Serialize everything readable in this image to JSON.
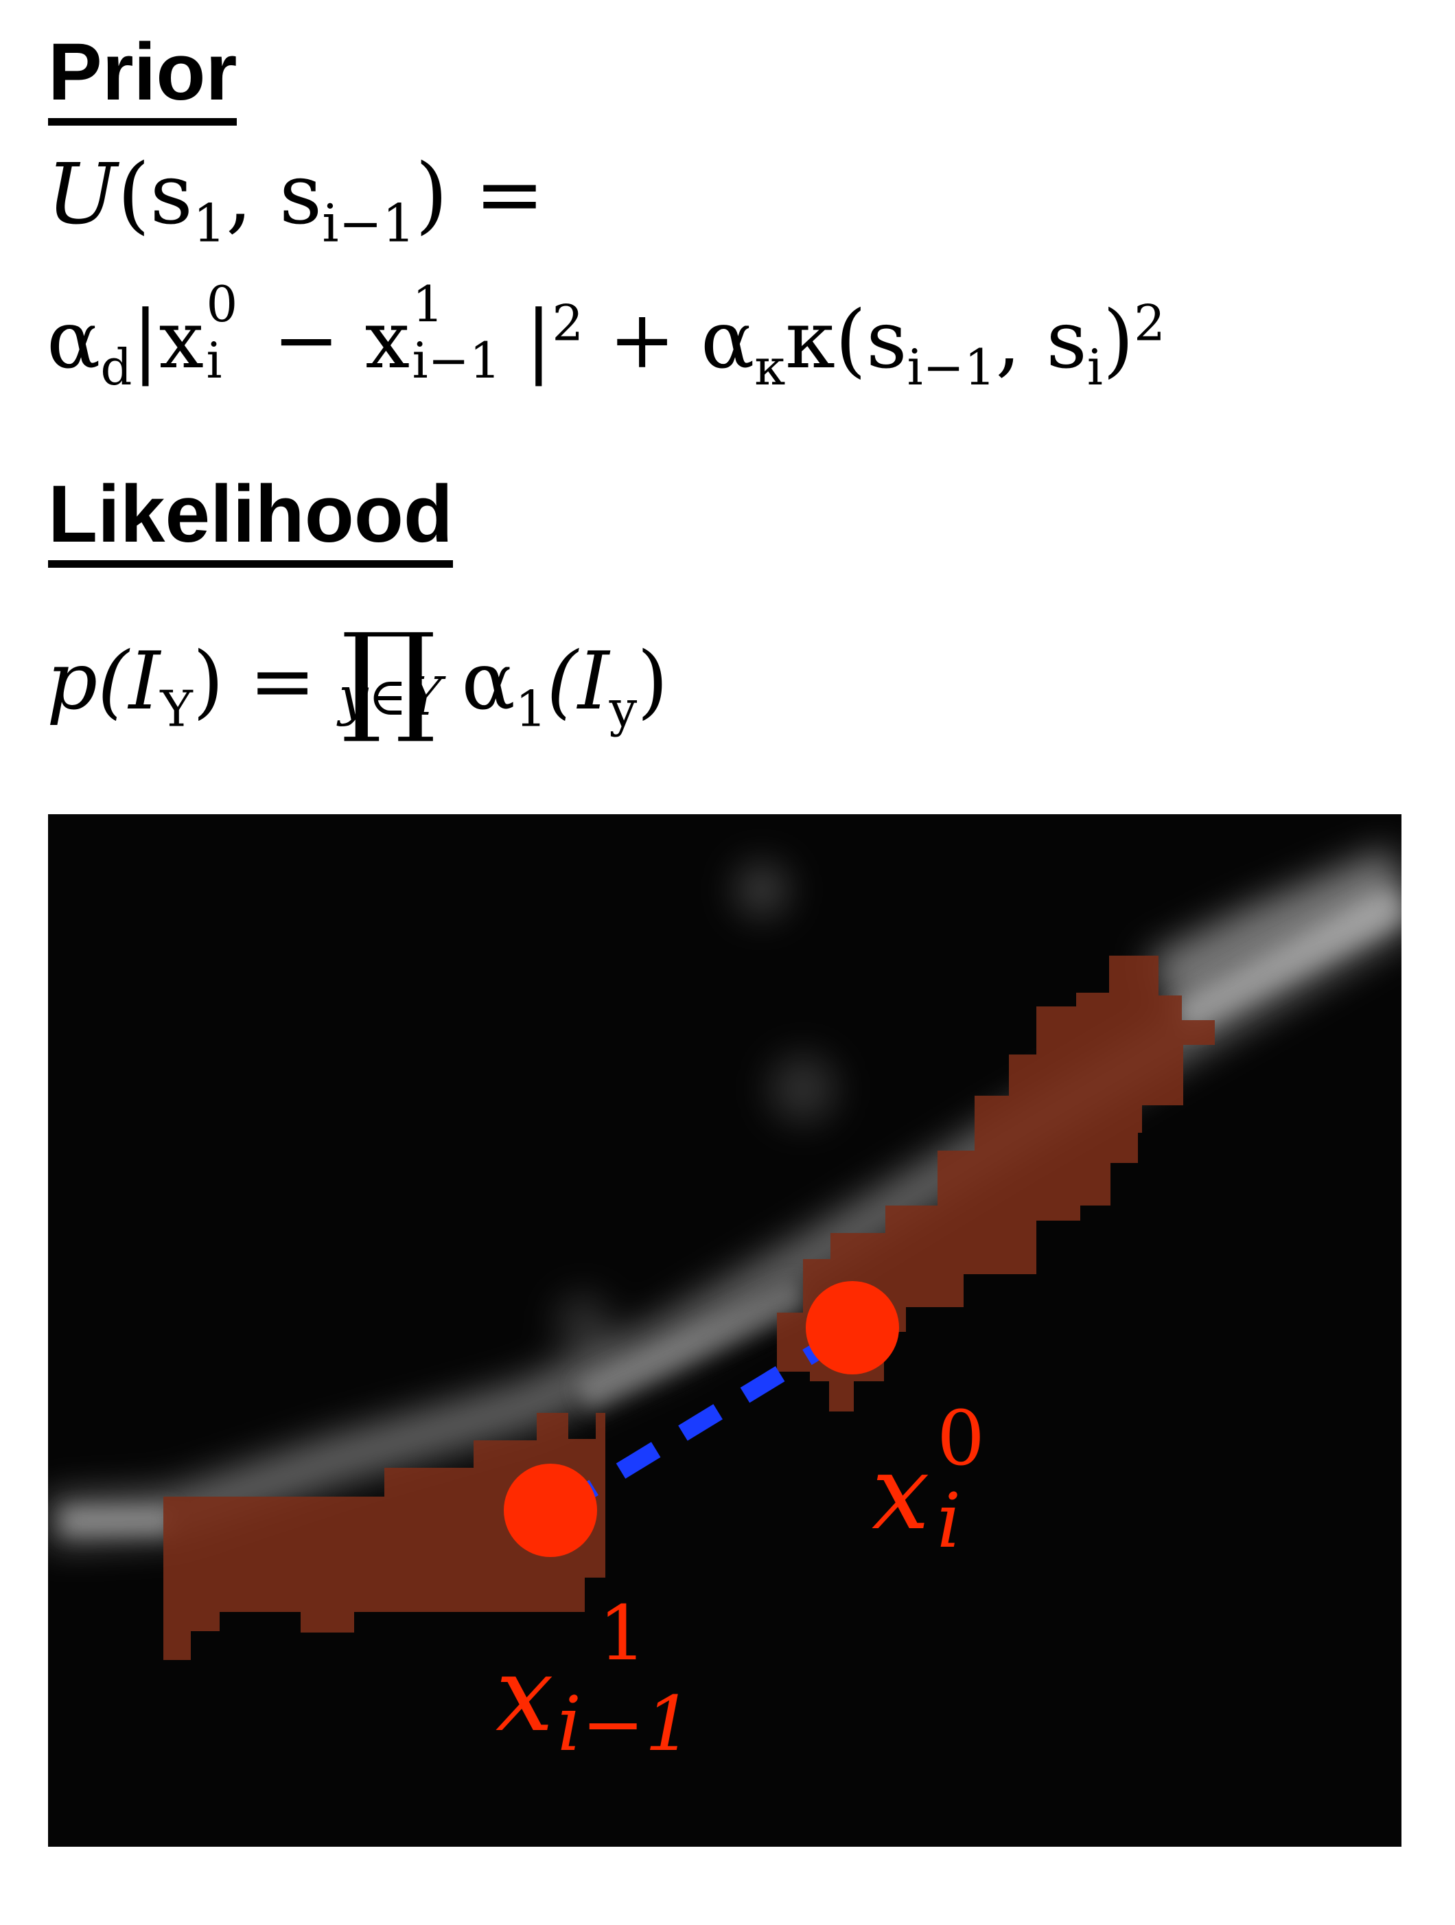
{
  "prior": {
    "heading": "Prior",
    "lhs": {
      "U": "U",
      "args": "(s",
      "s1_sub": "1",
      "comma": ", s",
      "si_sub": "i−1",
      "close": ") ="
    },
    "rhs": {
      "alpha": "α",
      "alpha_d_sub": "d",
      "bar_x": "|x",
      "x0_sup": "0",
      "x0_sub": "i",
      "minus_x": " − x",
      "x1_sup": "1",
      "x1_sub": "i−1",
      "bar": "|",
      "sq1": "2",
      "plus_alpha": " + α",
      "alpha_k_sub": "κ",
      "kappa": "κ(s",
      "s_prev_sub": "i−1",
      "comma_s": ", s",
      "s_i_sub": "i",
      "close": ")",
      "sq2": "2"
    }
  },
  "likelihood": {
    "heading": "Likelihood",
    "lhs": "p(I",
    "lhs_sub": "Y",
    "lhs_close": ") =",
    "prod": "∏",
    "prod_under": "y∈Y",
    "alpha": "α",
    "alpha_sub": "1",
    "arg": "(I",
    "arg_sub": "y",
    "arg_close": ")"
  },
  "figure": {
    "colors": {
      "background": "#050505",
      "ridge": "#cfcfcf",
      "segment": "#7a2f1a",
      "point": "#ff2a00",
      "link": "#1a3cff"
    },
    "labels": {
      "x_i0": {
        "base": "x",
        "sup": "0",
        "sub": "i"
      },
      "x_prev1": {
        "base": "x",
        "sup": "1",
        "sub": "i−1"
      }
    }
  }
}
